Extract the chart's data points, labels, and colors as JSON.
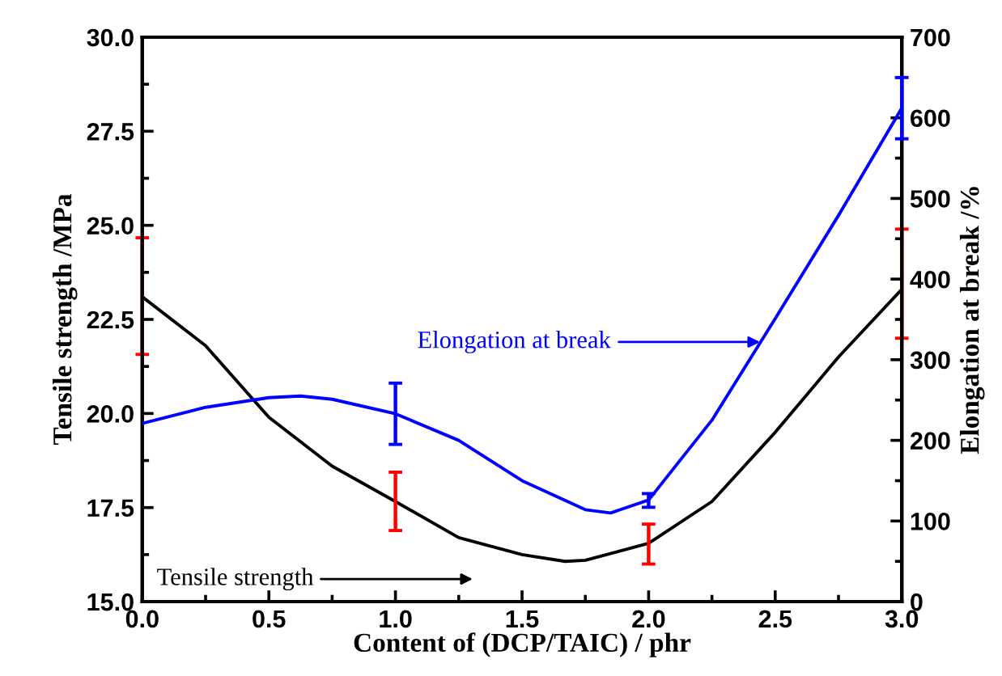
{
  "chart_data": {
    "type": "line",
    "xlabel": "Content of (DCP/TAIC) / phr",
    "ylabel": "Tensile strength /MPa",
    "y2label": "Elongation at break /%",
    "xlim": [
      0,
      3
    ],
    "xticks": [
      {
        "value": 0,
        "label": "0.0"
      },
      {
        "value": 0.5,
        "label": "0.5"
      },
      {
        "value": 1,
        "label": "1.0"
      },
      {
        "value": 1.5,
        "label": "1.5"
      },
      {
        "value": 2,
        "label": "2.0"
      },
      {
        "value": 2.5,
        "label": "2.5"
      },
      {
        "value": 3,
        "label": "3.0"
      }
    ],
    "ylim": [
      15,
      30
    ],
    "yticks": [
      {
        "value": 15,
        "label": "15.0"
      },
      17.5,
      {
        "value": 20,
        "label": "20.0"
      },
      22.5,
      {
        "value": 25,
        "label": "25.0"
      },
      27.5,
      {
        "value": 30,
        "label": "30.0"
      }
    ],
    "y2lim": [
      0,
      700
    ],
    "y2ticks": [
      0,
      100,
      200,
      300,
      400,
      500,
      600,
      700
    ],
    "grid": false,
    "legend": false,
    "marker": "none",
    "line_style": "solid",
    "series": [
      {
        "color": "#000000",
        "x": [
          0,
          0.25,
          0.5,
          0.75,
          1,
          1.25,
          1.5,
          1.67,
          1.75,
          2,
          2.25,
          2.5,
          2.75,
          3
        ],
        "values": [
          23.1,
          21.8,
          19.9,
          18.6,
          17.66,
          16.7,
          16.25,
          16.07,
          16.1,
          16.55,
          17.66,
          19.5,
          21.5,
          23.3
        ],
        "errors": [
          [
            21.57,
            24.67
          ],
          null,
          null,
          null,
          [
            16.89,
            18.44
          ],
          null,
          null,
          null,
          null,
          [
            16.0,
            17.06
          ],
          null,
          null,
          null,
          [
            22.0,
            24.9
          ]
        ]
      },
      {
        "color": "#0000ff",
        "axis": "y2",
        "x": [
          0,
          0.25,
          0.5,
          0.625,
          0.75,
          1,
          1.25,
          1.5,
          1.75,
          1.85,
          2,
          2.25,
          2.5,
          2.75,
          3
        ],
        "values": [
          221,
          241,
          253,
          255,
          251,
          233,
          200,
          150,
          114,
          110,
          126,
          225,
          351,
          479,
          612
        ],
        "errors": [
          null,
          null,
          null,
          null,
          null,
          [
            195,
            271
          ],
          null,
          null,
          null,
          null,
          [
            117,
            134
          ],
          null,
          null,
          null,
          [
            574,
            650
          ]
        ]
      }
    ],
    "annotations": [
      "Tensile strength",
      {
        "text": "Elongation at break",
        "x": 2.44,
        "y": 21.9
      }
    ]
  }
}
